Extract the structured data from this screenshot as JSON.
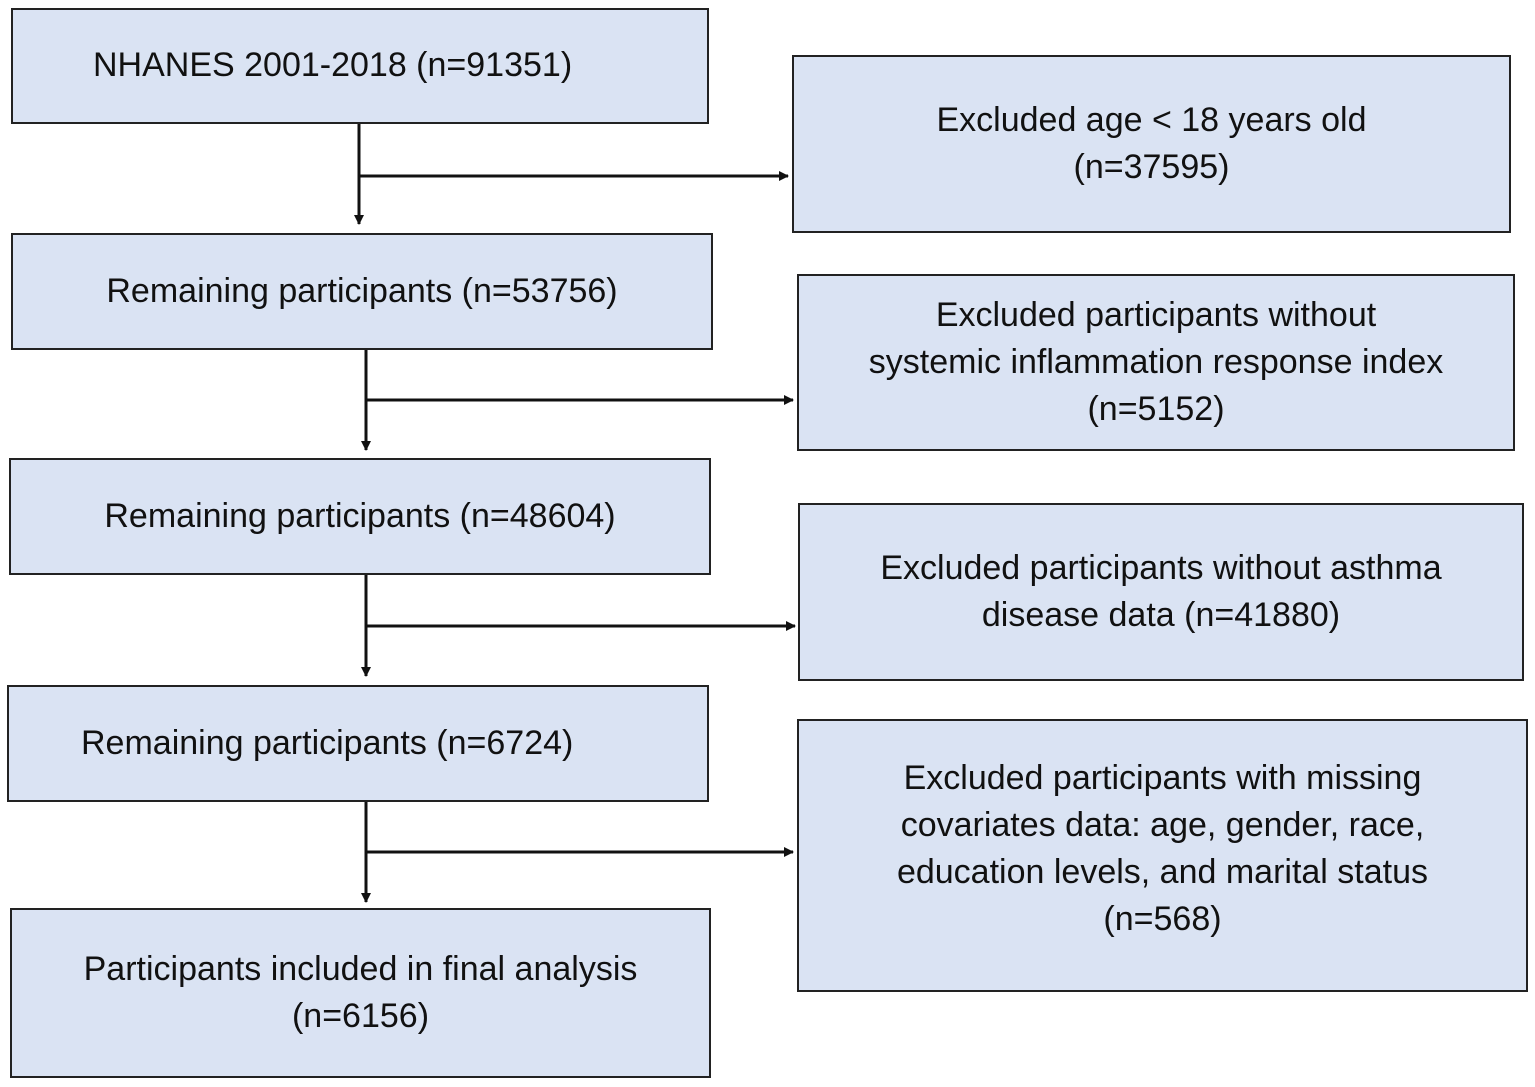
{
  "flow_steps": [
    {
      "lines": [
        "NHANES 2001-2018 (n=91351)"
      ]
    },
    {
      "lines": [
        "Remaining participants (n=53756)"
      ]
    },
    {
      "lines": [
        "Remaining participants (n=48604)"
      ]
    },
    {
      "lines": [
        "Remaining participants (n=6724)"
      ]
    },
    {
      "lines": [
        "Participants included in final analysis",
        "(n=6156)"
      ]
    }
  ],
  "exclusions": [
    {
      "lines": [
        "Excluded age < 18 years old",
        "(n=37595)"
      ]
    },
    {
      "lines": [
        "Excluded participants without",
        "systemic inflammation response index",
        "(n=5152)"
      ]
    },
    {
      "lines": [
        "Excluded participants without asthma",
        "disease data (n=41880)"
      ]
    },
    {
      "lines": [
        "Excluded participants with missing",
        "covariates data: age, gender, race,",
        "education levels, and marital status",
        "(n=568)"
      ]
    }
  ],
  "colors": {
    "box_fill": "#dae3f3",
    "box_border": "#222222",
    "arrow": "#111111"
  }
}
